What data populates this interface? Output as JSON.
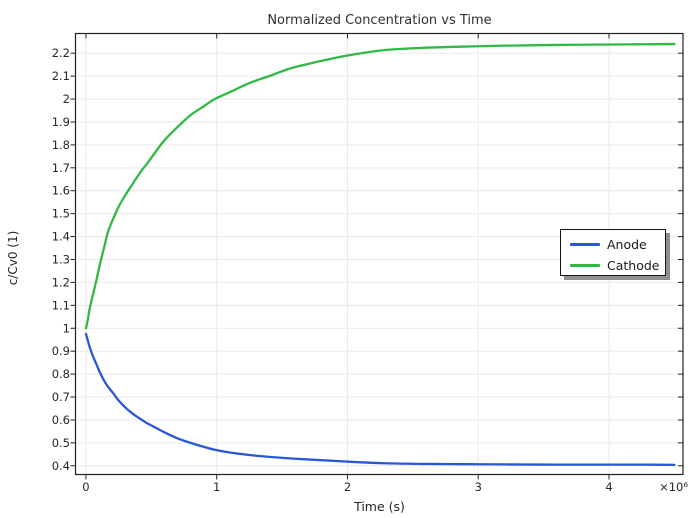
{
  "chart_data": {
    "type": "line",
    "title": "Normalized Concentration vs Time",
    "xlabel": "Time (s)",
    "ylabel": "c/Cv0 (1)",
    "x_unit_multiplier_label": "×10⁶",
    "grid": true,
    "legend_position": "right-middle",
    "xlim": [
      -80000,
      4566000
    ],
    "ylim": [
      0.362,
      2.286
    ],
    "x_ticks": [
      0,
      1000000,
      2000000,
      3000000,
      4000000
    ],
    "x_tick_labels": [
      "0",
      "1",
      "2",
      "3",
      "4"
    ],
    "y_ticks": [
      0.4,
      0.5,
      0.6,
      0.7,
      0.8,
      0.9,
      1.0,
      1.1,
      1.2,
      1.3,
      1.4,
      1.5,
      1.6,
      1.7,
      1.8,
      1.9,
      2.0,
      2.1,
      2.2
    ],
    "y_tick_labels": [
      "0.4",
      "0.5",
      "0.6",
      "0.7",
      "0.8",
      "0.9",
      "1",
      "1.1",
      "1.2",
      "1.3",
      "1.4",
      "1.5",
      "1.6",
      "1.7",
      "1.8",
      "1.9",
      "2",
      "2.1",
      "2.2"
    ],
    "x": [
      0,
      15000,
      30000,
      55000,
      80000,
      107000,
      140000,
      168000,
      210000,
      250000,
      300000,
      340000,
      380000,
      428000,
      470000,
      520000,
      600000,
      700000,
      800000,
      900000,
      985000,
      1100000,
      1250000,
      1400000,
      1570000,
      1750000,
      2000000,
      2290000,
      2600000,
      2900000,
      3200000,
      3600000,
      4000000,
      4250000,
      4500000
    ],
    "series": [
      {
        "name": "Anode",
        "color": "#2857d8",
        "values": [
          0.975,
          0.945,
          0.915,
          0.876,
          0.843,
          0.807,
          0.77,
          0.745,
          0.715,
          0.685,
          0.655,
          0.635,
          0.618,
          0.6,
          0.585,
          0.57,
          0.546,
          0.52,
          0.5,
          0.483,
          0.47,
          0.458,
          0.447,
          0.439,
          0.432,
          0.426,
          0.418,
          0.411,
          0.408,
          0.407,
          0.406,
          0.405,
          0.405,
          0.405,
          0.404
        ]
      },
      {
        "name": "Cathode",
        "color": "#31b944",
        "values": [
          1.0,
          1.04,
          1.09,
          1.15,
          1.21,
          1.28,
          1.355,
          1.42,
          1.48,
          1.53,
          1.58,
          1.615,
          1.65,
          1.69,
          1.72,
          1.76,
          1.82,
          1.878,
          1.93,
          1.968,
          2.0,
          2.03,
          2.07,
          2.1,
          2.135,
          2.16,
          2.19,
          2.214,
          2.224,
          2.229,
          2.233,
          2.236,
          2.238,
          2.239,
          2.24
        ]
      }
    ],
    "colors": {
      "axis": "#222222",
      "grid": "#eaeaea",
      "tick_text": "#262626",
      "title_text": "#303030",
      "legend_border": "#141414",
      "legend_shadow": "#8f8f8f",
      "background": "#ffffff"
    }
  }
}
